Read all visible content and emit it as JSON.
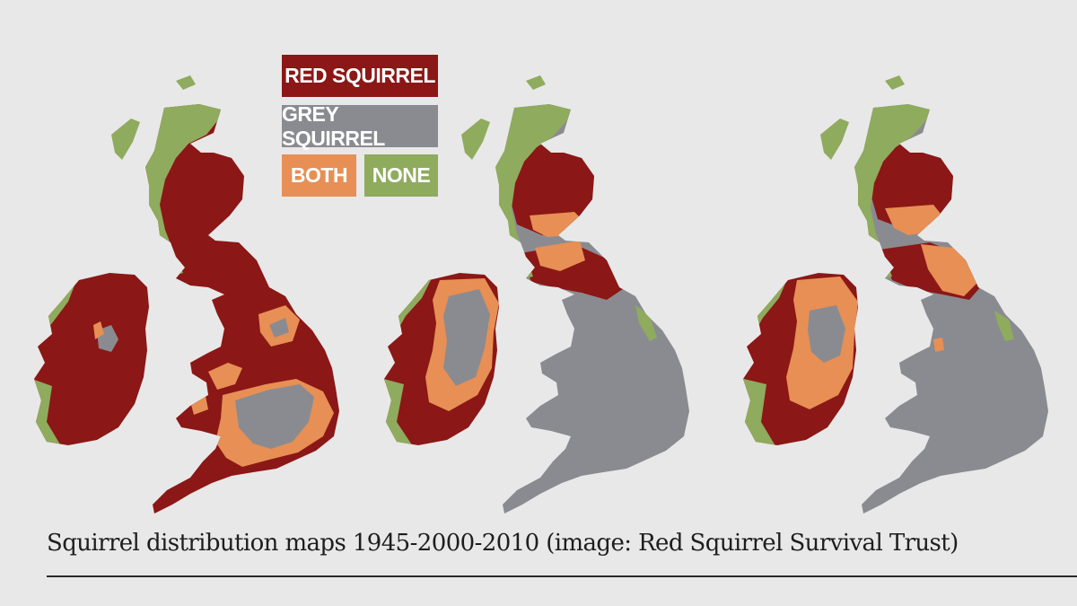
{
  "colors": {
    "red": "#8b1716",
    "grey": "#8a8b90",
    "both": "#e78f55",
    "none": "#8fab5e",
    "background": "#e8e8e8"
  },
  "legend": {
    "red_label": "RED SQUIRREL",
    "grey_label": "GREY SQUIRREL",
    "both_label": "BOTH",
    "none_label": "NONE"
  },
  "maps": [
    {
      "panel": "1945"
    },
    {
      "panel": "2000"
    },
    {
      "panel": "2010"
    }
  ],
  "caption": "Squirrel distribution maps 1945-2000-2010 (image: Red Squirrel Survival Trust)"
}
